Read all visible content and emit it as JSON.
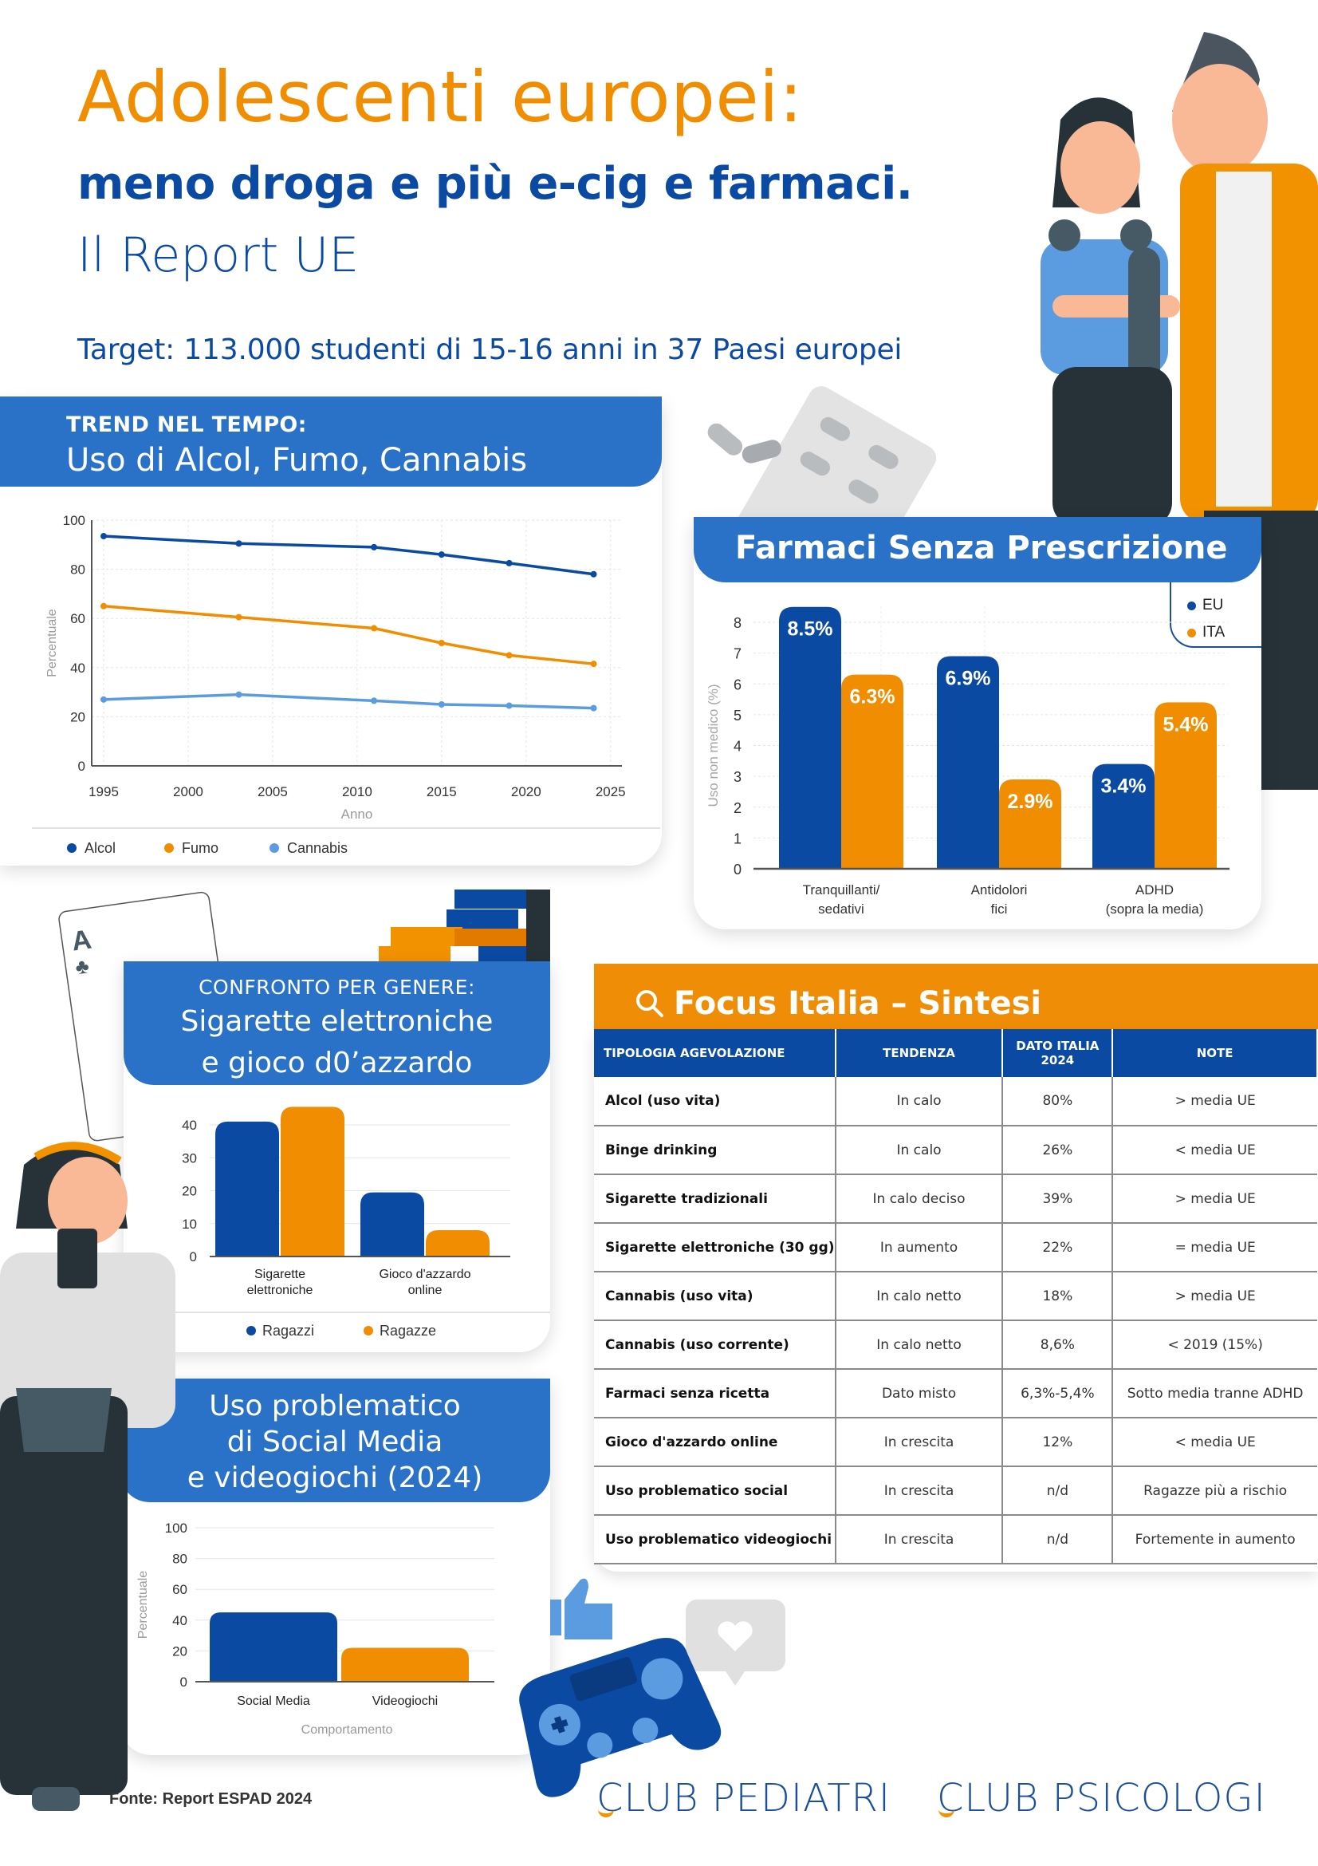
{
  "header": {
    "title": "Adolescenti europei:",
    "subtitle": "meno droga e più e-cig e farmaci.",
    "report": "Il Report UE",
    "target": "Target: 113.000 studenti di 15-16 anni in 37 Paesi europei"
  },
  "colors": {
    "dark_blue": "#0b4aa3",
    "mid_blue": "#2a72c7",
    "light_blue": "#5b9be0",
    "orange": "#f18d00"
  },
  "trend_card": {
    "kicker": "TREND NEL TEMPO:",
    "title": "Uso di Alcol, Fumo, Cannabis"
  },
  "farmaci_card": {
    "title": "Farmaci Senza Prescrizione",
    "legend": [
      "EU",
      "ITA"
    ]
  },
  "gender_card": {
    "kicker": "CONFRONTO PER GENERE:",
    "title_line1": "Sigarette elettroniche",
    "title_line2": "e gioco d0’azzardo"
  },
  "social_card": {
    "title_line1": "Uso problematico",
    "title_line2": "di Social Media",
    "title_line3": "e videogiochi (2024)"
  },
  "focus": {
    "title": "Focus Italia – Sintesi",
    "columns": [
      "TIPOLOGIA AGEVOLAZIONE",
      "TENDENZA",
      "DATO ITALIA 2024",
      "NOTE"
    ],
    "rows": [
      [
        "Alcol (uso vita)",
        "In calo",
        "80%",
        "> media UE"
      ],
      [
        "Binge drinking",
        "In calo",
        "26%",
        "< media UE"
      ],
      [
        "Sigarette tradizionali",
        "In calo deciso",
        "39%",
        "> media UE"
      ],
      [
        "Sigarette elettroniche (30 gg)",
        "In aumento",
        "22%",
        "= media UE"
      ],
      [
        "Cannabis (uso vita)",
        "In calo netto",
        "18%",
        "> media UE"
      ],
      [
        "Cannabis (uso corrente)",
        "In calo netto",
        "8,6%",
        "< 2019 (15%)"
      ],
      [
        "Farmaci senza ricetta",
        "Dato misto",
        "6,3%-5,4%",
        "Sotto media tranne ADHD"
      ],
      [
        "Gioco d'azzardo online",
        "In crescita",
        "12%",
        "< media UE"
      ],
      [
        "Uso problematico social",
        "In crescita",
        "n/d",
        "Ragazze più a rischio"
      ],
      [
        "Uso problematico videogiochi",
        "In crescita",
        "n/d",
        "Fortemente in aumento"
      ]
    ]
  },
  "footer": {
    "source": "Fonte: Report ESPAD 2024",
    "logo1": "CLUB PEDIATRI",
    "logo2": "CLUB PSICOLOGI"
  },
  "chart_data": [
    {
      "type": "line",
      "title": "TREND NEL TEMPO: Uso di Alcol, Fumo, Cannabis",
      "xlabel": "Anno",
      "ylabel": "Percentuale",
      "x": [
        1995,
        2003,
        2011,
        2015,
        2019,
        2024
      ],
      "xticks": [
        1995,
        2000,
        2005,
        2010,
        2015,
        2020,
        2025
      ],
      "yticks": [
        0,
        20,
        40,
        60,
        80,
        100
      ],
      "ylim": [
        0,
        100
      ],
      "xlim": [
        1995,
        2025
      ],
      "grid": true,
      "legend_position": "bottom",
      "series": [
        {
          "name": "Alcol",
          "color": "#0b4aa3",
          "values": [
            93.5,
            90.5,
            89,
            86,
            82.5,
            78
          ]
        },
        {
          "name": "Fumo",
          "color": "#f18d00",
          "values": [
            65,
            60.5,
            56,
            50,
            45,
            41.5
          ]
        },
        {
          "name": "Cannabis",
          "color": "#5b9be0",
          "values": [
            27,
            29,
            26.5,
            25,
            24.5,
            23.5
          ]
        }
      ]
    },
    {
      "type": "bar",
      "title": "Farmaci Senza Prescrizione",
      "ylabel": "Uso non medico (%)",
      "categories": [
        "Tranquillanti/ sedativi",
        "Antidolori fici",
        "ADHD (sopra la media)"
      ],
      "yticks": [
        0,
        1,
        2,
        3,
        4,
        5,
        6,
        7,
        8
      ],
      "ylim": [
        0,
        8.7
      ],
      "legend_position": "top-right",
      "series": [
        {
          "name": "EU",
          "color": "#0b4aa3",
          "values": [
            8.5,
            6.9,
            3.4
          ],
          "labels": [
            "8.5%",
            "6.9%",
            "3.4%"
          ]
        },
        {
          "name": "ITA",
          "color": "#f18d00",
          "values": [
            6.3,
            2.9,
            5.4
          ],
          "labels": [
            "6.3%",
            "2.9%",
            "5.4%"
          ]
        }
      ]
    },
    {
      "type": "bar",
      "title": "CONFRONTO PER GENERE: Sigarette elettroniche e gioco d0’azzardo",
      "categories": [
        "Sigarette elettroniche",
        "Gioco d'azzardo online"
      ],
      "yticks": [
        0,
        10,
        20,
        30,
        40
      ],
      "ylim": [
        0,
        47
      ],
      "legend_position": "bottom",
      "series": [
        {
          "name": "Ragazzi",
          "color": "#0b4aa3",
          "values": [
            41,
            19.5
          ]
        },
        {
          "name": "Ragazze",
          "color": "#f18d00",
          "values": [
            45.5,
            8
          ]
        }
      ]
    },
    {
      "type": "bar",
      "title": "Uso problematico di Social Media e videogiochi (2024)",
      "xlabel": "Comportamento",
      "ylabel": "Percentuale",
      "categories": [
        "Social Media",
        "Videogiochi"
      ],
      "yticks": [
        0,
        20,
        40,
        60,
        80,
        100
      ],
      "ylim": [
        0,
        100
      ],
      "values": [
        45,
        22
      ],
      "colors": [
        "#0b4aa3",
        "#f18d00"
      ]
    }
  ]
}
